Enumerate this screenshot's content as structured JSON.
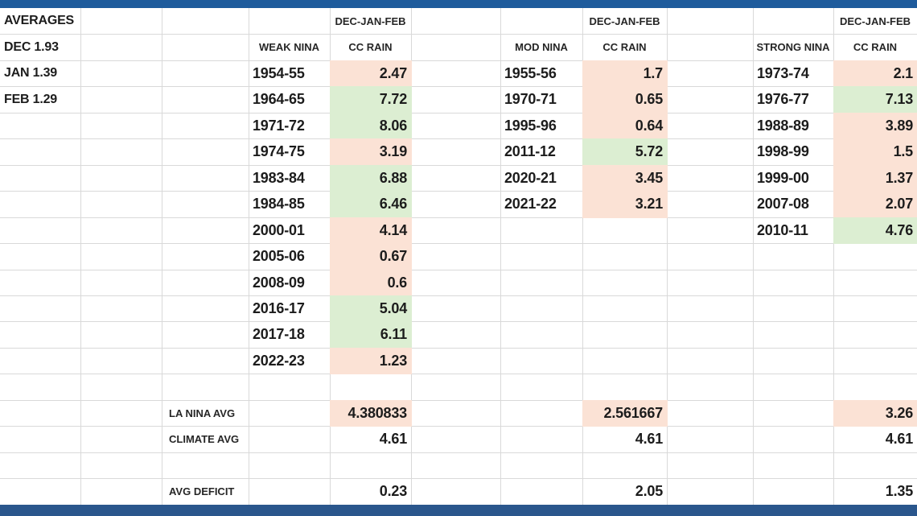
{
  "colors": {
    "top_bar": "#1e5b9c",
    "bottom_bar": "#2a568c",
    "deficit_fill": "#fbe2d5",
    "surplus_fill": "#dceed2",
    "gridline": "#d9d9d9",
    "text": "#1c1c1c"
  },
  "averages": {
    "title": "AVERAGES",
    "items": [
      "DEC 1.93",
      "JAN 1.39",
      "FEB 1.29"
    ]
  },
  "headers": {
    "period": "DEC-JAN-FEB",
    "rain": "CC RAIN"
  },
  "summary": {
    "la_nina_avg_label": "LA NINA AVG",
    "climate_avg_label": "CLIMATE AVG",
    "avg_deficit_label": "AVG DEFICIT"
  },
  "groups": [
    {
      "name": "WEAK NINA",
      "rows": [
        {
          "year": "1954-55",
          "value": "2.47",
          "fill": "deficit"
        },
        {
          "year": "1964-65",
          "value": "7.72",
          "fill": "surplus"
        },
        {
          "year": "1971-72",
          "value": "8.06",
          "fill": "surplus"
        },
        {
          "year": "1974-75",
          "value": "3.19",
          "fill": "deficit"
        },
        {
          "year": "1983-84",
          "value": "6.88",
          "fill": "surplus"
        },
        {
          "year": "1984-85",
          "value": "6.46",
          "fill": "surplus"
        },
        {
          "year": "2000-01",
          "value": "4.14",
          "fill": "deficit"
        },
        {
          "year": "2005-06",
          "value": "0.67",
          "fill": "deficit"
        },
        {
          "year": "2008-09",
          "value": "0.6",
          "fill": "deficit"
        },
        {
          "year": "2016-17",
          "value": "5.04",
          "fill": "surplus"
        },
        {
          "year": "2017-18",
          "value": "6.11",
          "fill": "surplus"
        },
        {
          "year": "2022-23",
          "value": "1.23",
          "fill": "deficit"
        }
      ],
      "la_nina_avg": "4.380833",
      "avg_fill": "deficit",
      "climate_avg": "4.61",
      "avg_deficit": "0.23"
    },
    {
      "name": "MOD NINA",
      "rows": [
        {
          "year": "1955-56",
          "value": "1.7",
          "fill": "deficit"
        },
        {
          "year": "1970-71",
          "value": "0.65",
          "fill": "deficit"
        },
        {
          "year": "1995-96",
          "value": "0.64",
          "fill": "deficit"
        },
        {
          "year": "2011-12",
          "value": "5.72",
          "fill": "surplus"
        },
        {
          "year": "2020-21",
          "value": "3.45",
          "fill": "deficit"
        },
        {
          "year": "2021-22",
          "value": "3.21",
          "fill": "deficit"
        }
      ],
      "la_nina_avg": "2.561667",
      "avg_fill": "deficit",
      "climate_avg": "4.61",
      "avg_deficit": "2.05"
    },
    {
      "name": "STRONG NINA",
      "rows": [
        {
          "year": "1973-74",
          "value": "2.1",
          "fill": "deficit"
        },
        {
          "year": "1976-77",
          "value": "7.13",
          "fill": "surplus"
        },
        {
          "year": "1988-89",
          "value": "3.89",
          "fill": "deficit"
        },
        {
          "year": "1998-99",
          "value": "1.5",
          "fill": "deficit"
        },
        {
          "year": "1999-00",
          "value": "1.37",
          "fill": "deficit"
        },
        {
          "year": "2007-08",
          "value": "2.07",
          "fill": "deficit"
        },
        {
          "year": "2010-11",
          "value": "4.76",
          "fill": "surplus"
        }
      ],
      "la_nina_avg": "3.26",
      "avg_fill": "deficit",
      "climate_avg": "4.61",
      "avg_deficit": "1.35"
    }
  ]
}
